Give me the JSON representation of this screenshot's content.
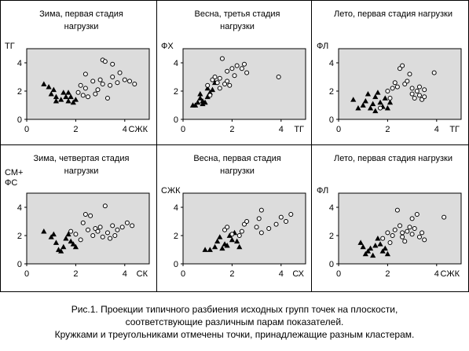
{
  "colors": {
    "plot_bg": "#dcdcdc",
    "frame": "#000000",
    "marker": "#000000",
    "background": "#ffffff"
  },
  "caption": {
    "line1": "Рис.1. Проекции типичного разбиения исходных групп точек на плоскости,",
    "line2": "соответствующие различным парам показателей.",
    "line3": "Кружками и треугольниками отмечены точки, принадлежащие разным кластерам."
  },
  "chart_data": [
    {
      "type": "scatter",
      "title": [
        "Зима, первая стадия",
        "нагрузки"
      ],
      "xlabel": "СЖК",
      "ylabel": [
        "ТГ"
      ],
      "xlim": [
        0,
        5
      ],
      "ylim": [
        0,
        5
      ],
      "xticks": [
        0,
        2,
        4
      ],
      "yticks": [
        0,
        2,
        4
      ],
      "grid": false,
      "series": [
        {
          "marker": "triangle-filled",
          "points": [
            [
              0.7,
              2.5
            ],
            [
              0.9,
              2.3
            ],
            [
              1.0,
              1.8
            ],
            [
              1.1,
              2.1
            ],
            [
              1.2,
              1.6
            ],
            [
              1.2,
              1.3
            ],
            [
              1.4,
              1.4
            ],
            [
              1.5,
              1.9
            ],
            [
              1.6,
              1.6
            ],
            [
              1.7,
              1.9
            ],
            [
              1.7,
              1.3
            ],
            [
              1.8,
              1.6
            ],
            [
              1.9,
              1.2
            ],
            [
              2.0,
              1.4
            ]
          ]
        },
        {
          "marker": "circle-open",
          "points": [
            [
              2.1,
              1.9
            ],
            [
              2.2,
              2.4
            ],
            [
              2.3,
              1.7
            ],
            [
              2.4,
              2.2
            ],
            [
              2.4,
              3.2
            ],
            [
              2.5,
              1.6
            ],
            [
              2.7,
              2.7
            ],
            [
              2.8,
              1.8
            ],
            [
              2.9,
              2.1
            ],
            [
              3.0,
              2.8
            ],
            [
              3.1,
              2.5
            ],
            [
              3.1,
              4.2
            ],
            [
              3.2,
              4.1
            ],
            [
              3.3,
              1.5
            ],
            [
              3.4,
              2.4
            ],
            [
              3.5,
              3.0
            ],
            [
              3.5,
              3.9
            ],
            [
              3.7,
              2.6
            ],
            [
              3.8,
              3.3
            ],
            [
              4.0,
              2.8
            ],
            [
              4.2,
              2.7
            ],
            [
              4.4,
              2.5
            ]
          ]
        }
      ]
    },
    {
      "type": "scatter",
      "title": [
        "Весна, третья стадия",
        "нагрузки"
      ],
      "xlabel": "ТГ",
      "ylabel": [
        "ФХ"
      ],
      "xlim": [
        0,
        5
      ],
      "ylim": [
        0,
        5
      ],
      "xticks": [
        0,
        2,
        4
      ],
      "yticks": [
        0,
        2,
        4
      ],
      "grid": false,
      "series": [
        {
          "marker": "triangle-filled",
          "points": [
            [
              0.4,
              1.0
            ],
            [
              0.5,
              1.0
            ],
            [
              0.6,
              1.2
            ],
            [
              0.7,
              1.5
            ],
            [
              0.7,
              1.8
            ],
            [
              0.8,
              1.1
            ],
            [
              0.8,
              1.3
            ],
            [
              0.9,
              1.2
            ],
            [
              1.0,
              1.6
            ],
            [
              1.0,
              2.2
            ],
            [
              1.1,
              1.9
            ],
            [
              1.2,
              2.1
            ],
            [
              1.3,
              2.6
            ]
          ]
        },
        {
          "marker": "circle-open",
          "points": [
            [
              1.0,
              2.4
            ],
            [
              1.1,
              1.7
            ],
            [
              1.2,
              2.8
            ],
            [
              1.3,
              3.0
            ],
            [
              1.4,
              2.6
            ],
            [
              1.5,
              2.9
            ],
            [
              1.5,
              2.2
            ],
            [
              1.6,
              4.3
            ],
            [
              1.7,
              2.5
            ],
            [
              1.8,
              3.4
            ],
            [
              1.8,
              2.7
            ],
            [
              1.9,
              2.4
            ],
            [
              2.0,
              3.6
            ],
            [
              2.1,
              3.1
            ],
            [
              2.2,
              3.8
            ],
            [
              2.4,
              3.6
            ],
            [
              2.5,
              3.9
            ],
            [
              2.6,
              3.3
            ],
            [
              3.9,
              3.0
            ]
          ]
        }
      ]
    },
    {
      "type": "scatter",
      "title": [
        "Лето, первая стадия нагрузки"
      ],
      "xlabel": "ТГ",
      "ylabel": [
        "ФЛ"
      ],
      "xlim": [
        0,
        5
      ],
      "ylim": [
        0,
        5
      ],
      "xticks": [
        0,
        2,
        4
      ],
      "yticks": [
        0,
        2,
        4
      ],
      "grid": false,
      "series": [
        {
          "marker": "triangle-filled",
          "points": [
            [
              0.6,
              1.4
            ],
            [
              0.8,
              0.8
            ],
            [
              1.0,
              1.0
            ],
            [
              1.1,
              1.3
            ],
            [
              1.2,
              1.8
            ],
            [
              1.3,
              0.8
            ],
            [
              1.4,
              1.1
            ],
            [
              1.5,
              0.6
            ],
            [
              1.5,
              1.6
            ],
            [
              1.6,
              1.9
            ],
            [
              1.7,
              1.2
            ],
            [
              1.8,
              0.9
            ],
            [
              1.9,
              1.5
            ],
            [
              2.0,
              0.8
            ],
            [
              2.1,
              1.2
            ]
          ]
        },
        {
          "marker": "circle-open",
          "points": [
            [
              1.7,
              0.8
            ],
            [
              2.0,
              2.0
            ],
            [
              2.1,
              1.5
            ],
            [
              2.2,
              2.2
            ],
            [
              2.3,
              2.6
            ],
            [
              2.4,
              2.3
            ],
            [
              2.5,
              3.6
            ],
            [
              2.6,
              3.8
            ],
            [
              2.7,
              2.5
            ],
            [
              2.8,
              2.7
            ],
            [
              2.9,
              3.2
            ],
            [
              3.0,
              1.8
            ],
            [
              3.0,
              2.2
            ],
            [
              3.1,
              1.5
            ],
            [
              3.2,
              2.0
            ],
            [
              3.3,
              2.3
            ],
            [
              3.3,
              1.7
            ],
            [
              3.4,
              1.4
            ],
            [
              3.5,
              2.1
            ],
            [
              3.5,
              1.6
            ],
            [
              3.9,
              3.3
            ]
          ]
        }
      ]
    },
    {
      "type": "scatter",
      "title": [
        "Зима, четвертая стадия",
        "нагрузки"
      ],
      "xlabel": "СК",
      "ylabel": [
        "СМ+",
        "ФС"
      ],
      "xlim": [
        0,
        5
      ],
      "ylim": [
        0,
        5
      ],
      "xticks": [
        0,
        2,
        4
      ],
      "yticks": [
        0,
        2,
        4
      ],
      "grid": false,
      "series": [
        {
          "marker": "triangle-filled",
          "points": [
            [
              0.7,
              2.3
            ],
            [
              1.0,
              1.9
            ],
            [
              1.1,
              2.1
            ],
            [
              1.2,
              1.5
            ],
            [
              1.3,
              1.0
            ],
            [
              1.4,
              0.9
            ],
            [
              1.5,
              1.2
            ],
            [
              1.6,
              1.8
            ],
            [
              1.7,
              2.1
            ],
            [
              1.8,
              1.6
            ],
            [
              1.9,
              1.4
            ],
            [
              2.0,
              1.2
            ]
          ]
        },
        {
          "marker": "circle-open",
          "points": [
            [
              1.8,
              2.3
            ],
            [
              2.0,
              2.1
            ],
            [
              2.2,
              1.7
            ],
            [
              2.3,
              2.9
            ],
            [
              2.4,
              3.5
            ],
            [
              2.5,
              2.4
            ],
            [
              2.6,
              3.4
            ],
            [
              2.7,
              2.0
            ],
            [
              2.8,
              2.5
            ],
            [
              2.9,
              2.3
            ],
            [
              3.0,
              2.6
            ],
            [
              3.1,
              1.9
            ],
            [
              3.2,
              4.1
            ],
            [
              3.3,
              2.2
            ],
            [
              3.4,
              1.8
            ],
            [
              3.5,
              2.7
            ],
            [
              3.6,
              2.0
            ],
            [
              3.7,
              2.4
            ],
            [
              3.9,
              2.6
            ],
            [
              4.1,
              2.9
            ],
            [
              4.3,
              2.7
            ]
          ]
        }
      ]
    },
    {
      "type": "scatter",
      "title": [
        "Весна, первая стадия",
        "нагрузки"
      ],
      "xlabel": "СХ",
      "ylabel": [
        "СЖК"
      ],
      "xlim": [
        0,
        5
      ],
      "ylim": [
        0,
        5
      ],
      "xticks": [
        0,
        2,
        4
      ],
      "yticks": [
        0,
        2,
        4
      ],
      "grid": false,
      "series": [
        {
          "marker": "triangle-filled",
          "points": [
            [
              0.9,
              1.0
            ],
            [
              1.1,
              1.0
            ],
            [
              1.3,
              1.2
            ],
            [
              1.4,
              1.6
            ],
            [
              1.5,
              1.9
            ],
            [
              1.6,
              1.1
            ],
            [
              1.7,
              1.4
            ],
            [
              1.8,
              1.3
            ],
            [
              1.9,
              2.0
            ],
            [
              2.0,
              1.7
            ],
            [
              2.1,
              2.2
            ],
            [
              2.2,
              1.6
            ],
            [
              2.3,
              1.2
            ]
          ]
        },
        {
          "marker": "circle-open",
          "points": [
            [
              1.7,
              2.4
            ],
            [
              1.8,
              2.6
            ],
            [
              2.0,
              2.1
            ],
            [
              2.3,
              2.0
            ],
            [
              2.4,
              2.3
            ],
            [
              2.5,
              2.8
            ],
            [
              2.6,
              3.0
            ],
            [
              3.0,
              2.6
            ],
            [
              3.1,
              3.2
            ],
            [
              3.2,
              2.2
            ],
            [
              3.5,
              2.5
            ],
            [
              3.8,
              2.8
            ],
            [
              4.0,
              3.3
            ],
            [
              4.2,
              3.0
            ],
            [
              4.4,
              3.5
            ],
            [
              3.2,
              3.8
            ]
          ]
        }
      ]
    },
    {
      "type": "scatter",
      "title": [
        "Лето, первая стадия нагрузки"
      ],
      "xlabel": "СЖК",
      "ylabel": [
        "ФЛ"
      ],
      "xlim": [
        0,
        5
      ],
      "ylim": [
        0,
        5
      ],
      "xticks": [
        0,
        2,
        4
      ],
      "yticks": [
        0,
        2,
        4
      ],
      "grid": false,
      "series": [
        {
          "marker": "triangle-filled",
          "points": [
            [
              0.9,
              1.5
            ],
            [
              1.0,
              1.2
            ],
            [
              1.1,
              0.7
            ],
            [
              1.2,
              0.9
            ],
            [
              1.3,
              1.1
            ],
            [
              1.4,
              0.6
            ],
            [
              1.5,
              1.3
            ],
            [
              1.6,
              1.8
            ],
            [
              1.7,
              1.4
            ],
            [
              1.8,
              0.9
            ],
            [
              1.9,
              1.1
            ],
            [
              2.0,
              0.7
            ]
          ]
        },
        {
          "marker": "circle-open",
          "points": [
            [
              1.8,
              1.8
            ],
            [
              2.0,
              2.2
            ],
            [
              2.1,
              1.5
            ],
            [
              2.2,
              2.0
            ],
            [
              2.3,
              2.4
            ],
            [
              2.4,
              3.8
            ],
            [
              2.5,
              2.7
            ],
            [
              2.6,
              1.9
            ],
            [
              2.7,
              1.6
            ],
            [
              2.8,
              2.3
            ],
            [
              2.9,
              2.6
            ],
            [
              3.0,
              2.1
            ],
            [
              3.1,
              2.5
            ],
            [
              3.2,
              3.5
            ],
            [
              3.3,
              1.9
            ],
            [
              3.4,
              2.2
            ],
            [
              3.5,
              1.7
            ],
            [
              2.6,
              2.2
            ],
            [
              3.0,
              3.2
            ],
            [
              4.3,
              3.3
            ]
          ]
        }
      ]
    }
  ]
}
